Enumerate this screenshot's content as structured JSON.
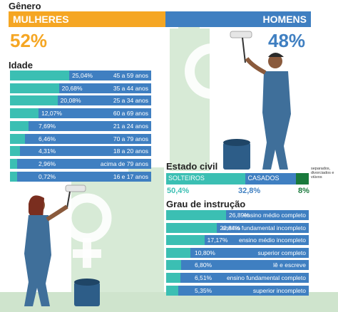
{
  "genero": {
    "title": "Gênero",
    "mulheres": {
      "label": "MULHERES",
      "pct": "52%",
      "value": 52,
      "color": "#f5a623"
    },
    "homens": {
      "label": "HOMENS",
      "pct": "48%",
      "value": 48,
      "color": "#3f7fc1"
    }
  },
  "colors": {
    "teal": "#3bbfb3",
    "blue": "#3f7fc1",
    "orange": "#f5a623",
    "green": "#1a7a3c",
    "pale_green": "#d7ead6"
  },
  "chart_data": [
    {
      "type": "bar",
      "title": "Idade",
      "categories": [
        "45 a 59 anos",
        "35 a 44 anos",
        "25 a 34 anos",
        "60 a 69 anos",
        "21 a 24 anos",
        "70 a 79 anos",
        "18 a 20 anos",
        "acima de 79 anos",
        "16 e 17 anos"
      ],
      "labels": [
        "25,04%",
        "20,68%",
        "20,08%",
        "12,07%",
        "7,69%",
        "6,46%",
        "4,31%",
        "2,96%",
        "0,72%"
      ],
      "values": [
        25.04,
        20.68,
        20.08,
        12.07,
        7.69,
        6.46,
        4.31,
        2.96,
        0.72
      ]
    },
    {
      "type": "bar",
      "title": "Estado civil",
      "categories": [
        "SOLTEIROS",
        "CASADOS",
        "separados, divorciados e viúvos"
      ],
      "labels": [
        "50,4%",
        "32,8%",
        "8%"
      ],
      "values": [
        50.4,
        32.8,
        8
      ]
    },
    {
      "type": "bar",
      "title": "Grau de instrução",
      "categories": [
        "ensino médio completo",
        "ensino fundamental incompleto",
        "ensino médio incompleto",
        "superior completo",
        "lê e escreve",
        "ensino fundamental completo",
        "superior incompleto"
      ],
      "labels": [
        "26,89%",
        "22,84%",
        "17,17%",
        "10,80%",
        "6,80%",
        "6,51%",
        "5,35%"
      ],
      "values": [
        26.89,
        22.84,
        17.17,
        10.8,
        6.8,
        6.51,
        5.35
      ]
    }
  ]
}
